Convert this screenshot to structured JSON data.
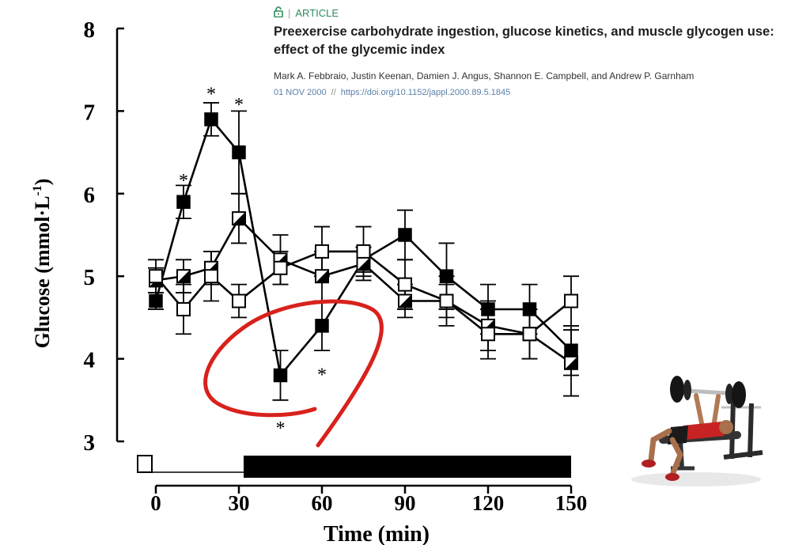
{
  "article": {
    "kicker": "ARTICLE",
    "kicker_separator": "|",
    "lock_icon": "lock-open-icon",
    "title_line1": "Preexercise carbohydrate ingestion, glucose kinetics, and muscle glycogen use:",
    "title_line2": "effect of the glycemic index",
    "authors": "Mark A. Febbraio, Justin Keenan, Damien J. Angus, Shannon E. Campbell, and Andrew P. Garnham",
    "date": "01 NOV 2000",
    "date_separator": "//",
    "doi": "https://doi.org/10.1152/jappl.2000.89.5.1845",
    "accent_color": "#2d8a5b"
  },
  "decorations": {
    "annotation_color": "#d9211c",
    "illustration": "bench-press-athlete-icon"
  },
  "chart_data": {
    "type": "line",
    "xlabel": "Time (min)",
    "ylabel_main": "Glucose (mmol·L",
    "ylabel_sup": "-1",
    "ylabel_close": ")",
    "xlim": [
      -8,
      152
    ],
    "ylim": [
      3,
      8
    ],
    "xticks": [
      0,
      30,
      60,
      90,
      120,
      150
    ],
    "yticks": [
      3,
      4,
      5,
      6,
      7,
      8
    ],
    "grid": false,
    "legend": "none",
    "rest_period_marker": {
      "from": -3,
      "to": 0
    },
    "exercise_period_bar": {
      "from": 30,
      "to": 150
    },
    "series": [
      {
        "marker": "filled-square",
        "x": [
          0,
          10,
          20,
          30,
          45,
          60,
          75,
          90,
          105,
          120,
          135,
          150
        ],
        "y": [
          4.7,
          5.9,
          6.9,
          6.5,
          3.8,
          4.4,
          5.2,
          5.5,
          5.0,
          4.6,
          4.6,
          4.1
        ],
        "err": [
          0.1,
          0.2,
          0.2,
          0.5,
          0.3,
          0.3,
          0.15,
          0.3,
          0.4,
          0.3,
          0.3,
          0.3
        ]
      },
      {
        "marker": "half-filled-square",
        "x": [
          0,
          10,
          20,
          30,
          45,
          60,
          75,
          90,
          105,
          120,
          135,
          150
        ],
        "y": [
          4.95,
          5.0,
          5.1,
          5.7,
          5.2,
          5.0,
          5.15,
          4.7,
          4.7,
          4.4,
          4.3,
          3.95
        ],
        "err": [
          0.15,
          0.2,
          0.2,
          0.3,
          0.3,
          0.3,
          0.2,
          0.2,
          0.2,
          0.3,
          0.3,
          0.4
        ]
      },
      {
        "marker": "open-square",
        "x": [
          0,
          10,
          20,
          30,
          45,
          60,
          75,
          90,
          105,
          120,
          135,
          150
        ],
        "y": [
          5.0,
          4.6,
          5.0,
          4.7,
          5.1,
          5.3,
          5.3,
          4.9,
          4.7,
          4.3,
          4.3,
          4.7
        ],
        "err": [
          0.2,
          0.3,
          0.3,
          0.2,
          0.2,
          0.3,
          0.3,
          0.3,
          0.3,
          0.3,
          0.3,
          0.3
        ]
      }
    ],
    "significance": [
      {
        "label": "*",
        "x": 10,
        "y": 6.2
      },
      {
        "label": "*",
        "x": 20,
        "y": 7.25
      },
      {
        "label": "*",
        "x": 30,
        "y": 7.12
      },
      {
        "label": "*",
        "x": 45,
        "y": 3.2
      },
      {
        "label": "*",
        "x": 60,
        "y": 3.85
      }
    ]
  }
}
